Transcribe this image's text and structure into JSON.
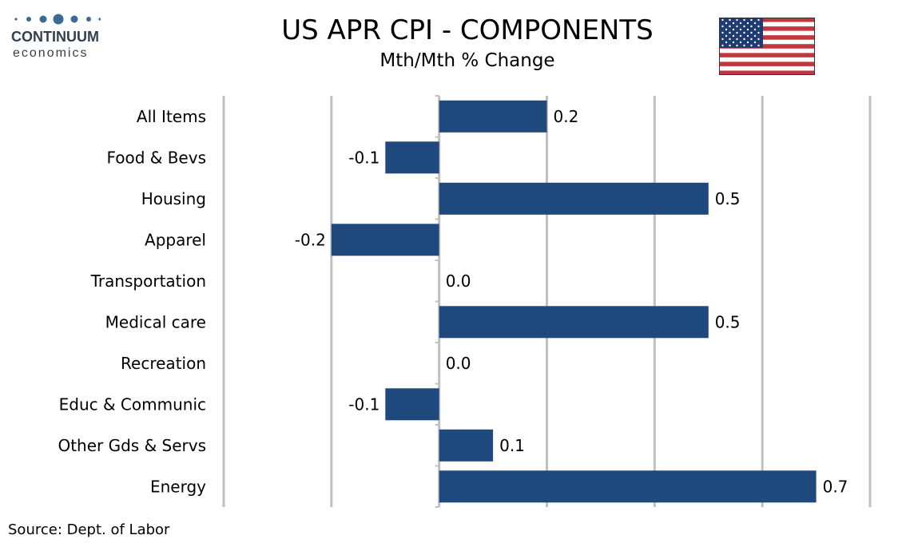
{
  "brand": {
    "name": "CONTINUUM",
    "tagline": "economics",
    "dot_color": "#3d6a94",
    "text_color": "#333f4d"
  },
  "header": {
    "title": "US APR CPI - COMPONENTS",
    "subtitle": "Mth/Mth % Change"
  },
  "flag": {
    "icon": "us-flag-icon",
    "red": "#c0373e",
    "blue": "#1f3b73",
    "white": "#ffffff"
  },
  "source": "Source: Dept. of Labor",
  "colors": {
    "bar": "#1f497d",
    "grid": "#c0c0c0"
  },
  "chart_data": {
    "type": "bar",
    "orientation": "horizontal",
    "categories": [
      "All Items",
      "Food & Bevs",
      "Housing",
      "Apparel ",
      "Transportation",
      "Medical care",
      "Recreation",
      "Educ & Communic",
      "Other Gds & Servs",
      "Energy"
    ],
    "values": [
      0.2,
      -0.1,
      0.5,
      -0.2,
      0.0,
      0.5,
      0.0,
      -0.1,
      0.1,
      0.7
    ],
    "data_labels": [
      "0.2",
      "-0.1",
      "0.5",
      "-0.2",
      "0.0",
      "0.5",
      "0.0",
      "-0.1",
      "0.1",
      "0.7"
    ],
    "xlim": [
      -0.4,
      0.8
    ],
    "grid_step": 0.2,
    "grid": true,
    "legend": false
  }
}
